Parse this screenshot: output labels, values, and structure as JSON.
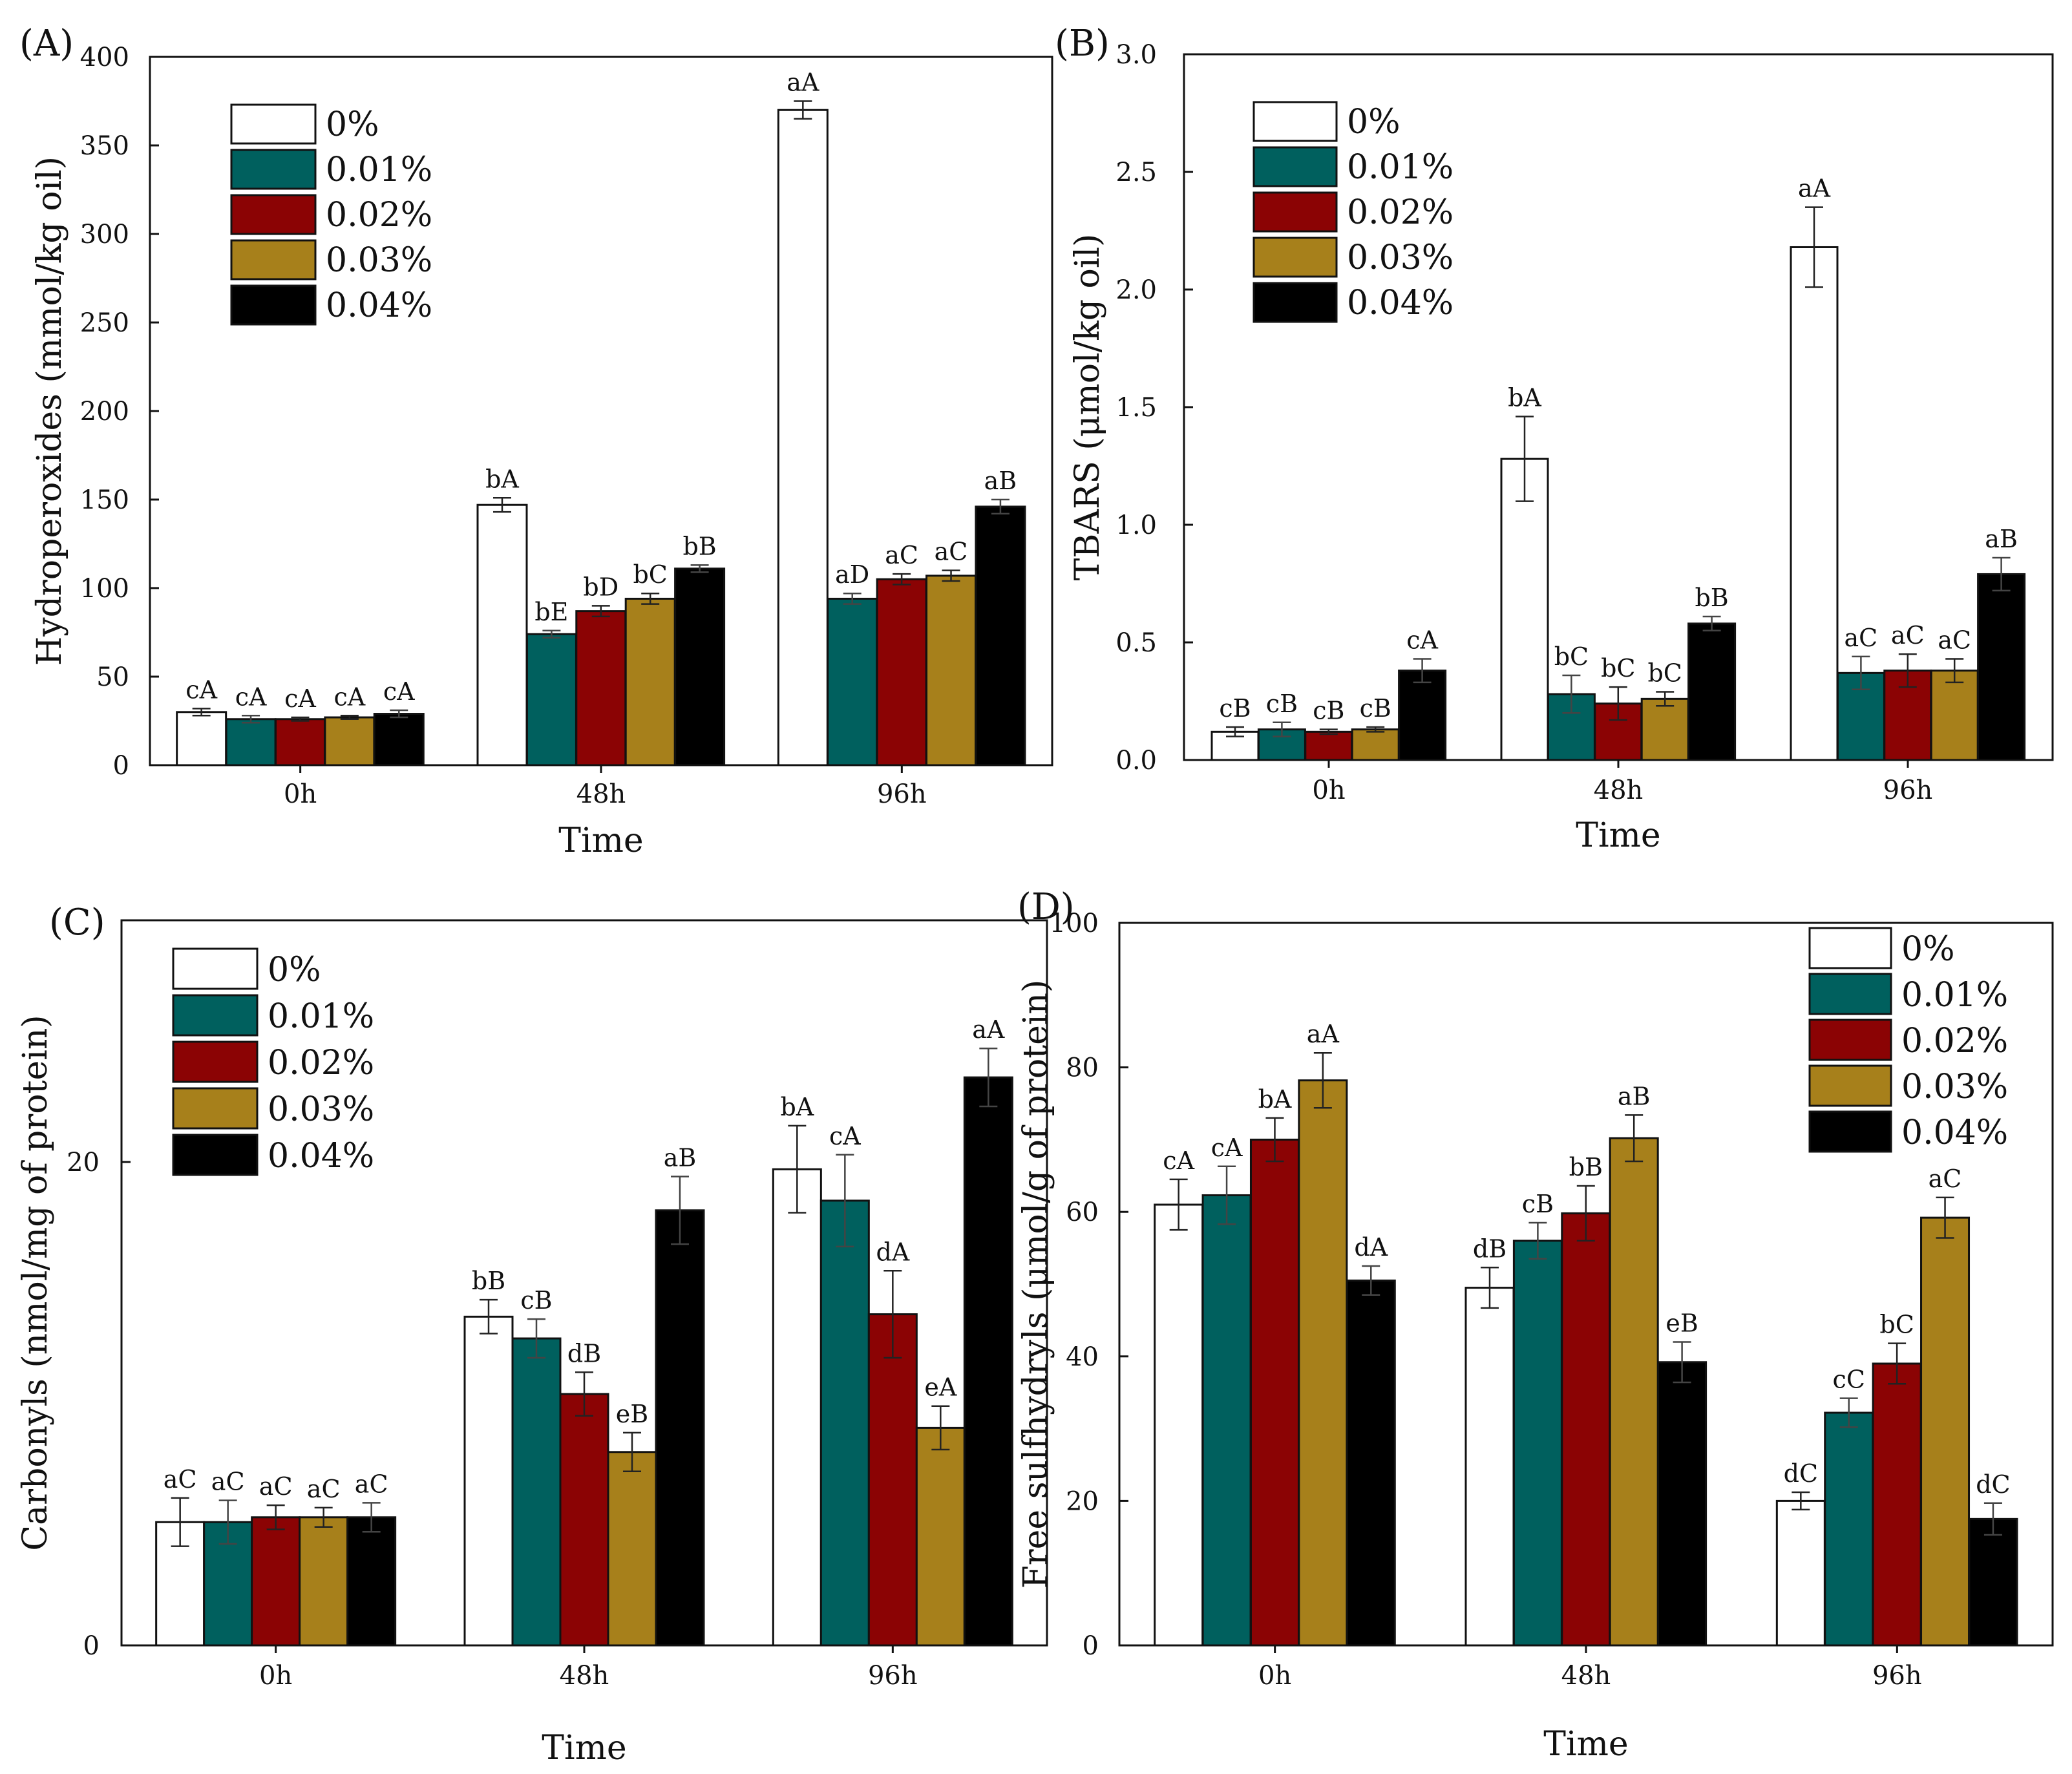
{
  "colors": {
    "0%": "#ffffff",
    "0.01%": "#00605e",
    "0.02%": "#8b0304",
    "0.03%": "#a7801b",
    "0.04%": "#000000"
  },
  "chart_data": [
    {
      "type": "bar",
      "panel": "(A)",
      "categories": [
        "0h",
        "48h",
        "96h"
      ],
      "xlabel": "Time",
      "ylabel": "Hydroperoxides (mmol/kg oil)",
      "ylim": [
        0,
        400
      ],
      "yticks": [
        0,
        50,
        100,
        150,
        200,
        250,
        300,
        350,
        400
      ],
      "legend_position": "top-left",
      "series": [
        {
          "name": "0%",
          "values": [
            30,
            147,
            370
          ],
          "errors": [
            2,
            4,
            5
          ],
          "labels": [
            "cA",
            "bA",
            "aA"
          ]
        },
        {
          "name": "0.01%",
          "values": [
            26,
            74,
            94
          ],
          "errors": [
            2,
            2,
            3
          ],
          "labels": [
            "cA",
            "bE",
            "aD"
          ]
        },
        {
          "name": "0.02%",
          "values": [
            26,
            87,
            105
          ],
          "errors": [
            1,
            3,
            3
          ],
          "labels": [
            "cA",
            "bD",
            "aC"
          ]
        },
        {
          "name": "0.03%",
          "values": [
            27,
            94,
            107
          ],
          "errors": [
            1,
            3,
            3
          ],
          "labels": [
            "cA",
            "bC",
            "aC"
          ]
        },
        {
          "name": "0.04%",
          "values": [
            29,
            111,
            146
          ],
          "errors": [
            2,
            2,
            4
          ],
          "labels": [
            "cA",
            "bB",
            "aB"
          ]
        }
      ]
    },
    {
      "type": "bar",
      "panel": "(B)",
      "categories": [
        "0h",
        "48h",
        "96h"
      ],
      "xlabel": "Time",
      "ylabel": "TBARS (μmol/kg oil)",
      "ylim": [
        0,
        3.0
      ],
      "yticks": [
        "0.0",
        "0.5",
        "1.0",
        "1.5",
        "2.0",
        "2.5",
        "3.0"
      ],
      "legend_position": "top-left",
      "series": [
        {
          "name": "0%",
          "values": [
            0.12,
            1.28,
            2.18
          ],
          "errors": [
            0.02,
            0.18,
            0.17
          ],
          "labels": [
            "cB",
            "bA",
            "aA"
          ]
        },
        {
          "name": "0.01%",
          "values": [
            0.13,
            0.28,
            0.37
          ],
          "errors": [
            0.03,
            0.08,
            0.07
          ],
          "labels": [
            "cB",
            "bC",
            "aC"
          ]
        },
        {
          "name": "0.02%",
          "values": [
            0.12,
            0.24,
            0.38
          ],
          "errors": [
            0.01,
            0.07,
            0.07
          ],
          "labels": [
            "cB",
            "bC",
            "aC"
          ]
        },
        {
          "name": "0.03%",
          "values": [
            0.13,
            0.26,
            0.38
          ],
          "errors": [
            0.01,
            0.03,
            0.05
          ],
          "labels": [
            "cB",
            "bC",
            "aC"
          ]
        },
        {
          "name": "0.04%",
          "values": [
            0.38,
            0.58,
            0.79
          ],
          "errors": [
            0.05,
            0.03,
            0.07
          ],
          "labels": [
            "cA",
            "bB",
            "aB"
          ]
        }
      ]
    },
    {
      "type": "bar",
      "panel": "(C)",
      "categories": [
        "0h",
        "48h",
        "96h"
      ],
      "xlabel": "Time",
      "ylabel": "Carbonyls (nmol/mg of protein)",
      "ylim": [
        0,
        30
      ],
      "yticks": [
        0,
        20
      ],
      "legend_position": "top-left",
      "series": [
        {
          "name": "0%",
          "values": [
            5.1,
            13.6,
            19.7
          ],
          "errors": [
            1.0,
            0.7,
            1.8
          ],
          "labels": [
            "aC",
            "bB",
            "bA"
          ]
        },
        {
          "name": "0.01%",
          "values": [
            5.1,
            12.7,
            18.4
          ],
          "errors": [
            0.9,
            0.8,
            1.9
          ],
          "labels": [
            "aC",
            "cB",
            "cA"
          ]
        },
        {
          "name": "0.02%",
          "values": [
            5.3,
            10.4,
            13.7
          ],
          "errors": [
            0.5,
            0.9,
            1.8
          ],
          "labels": [
            "aC",
            "dB",
            "dA"
          ]
        },
        {
          "name": "0.03%",
          "values": [
            5.3,
            8.0,
            9.0
          ],
          "errors": [
            0.4,
            0.8,
            0.9
          ],
          "labels": [
            "aC",
            "eB",
            "eA"
          ]
        },
        {
          "name": "0.04%",
          "values": [
            5.3,
            18.0,
            23.5
          ],
          "errors": [
            0.6,
            1.4,
            1.2
          ],
          "labels": [
            "aC",
            "aB",
            "aA"
          ]
        }
      ]
    },
    {
      "type": "bar",
      "panel": "(D)",
      "categories": [
        "0h",
        "48h",
        "96h"
      ],
      "xlabel": "Time",
      "ylabel": "Free sulfhydryls (μmol/g of protein)",
      "ylim": [
        0,
        100
      ],
      "yticks": [
        0,
        20,
        40,
        60,
        80,
        100
      ],
      "legend_position": "top-right",
      "series": [
        {
          "name": "0%",
          "values": [
            61,
            49.5,
            20
          ],
          "errors": [
            3.5,
            2.8,
            1.2
          ],
          "labels": [
            "cA",
            "dB",
            "dC"
          ]
        },
        {
          "name": "0.01%",
          "values": [
            62.3,
            56,
            32.2
          ],
          "errors": [
            4,
            2.5,
            2
          ],
          "labels": [
            "cA",
            "cB",
            "cC"
          ]
        },
        {
          "name": "0.02%",
          "values": [
            70,
            59.8,
            39
          ],
          "errors": [
            3,
            3.8,
            2.8
          ],
          "labels": [
            "bA",
            "bB",
            "bC"
          ]
        },
        {
          "name": "0.03%",
          "values": [
            78.2,
            70.2,
            59.2
          ],
          "errors": [
            3.8,
            3.2,
            2.8
          ],
          "labels": [
            "aA",
            "aB",
            "aC"
          ]
        },
        {
          "name": "0.04%",
          "values": [
            50.5,
            39.2,
            17.5
          ],
          "errors": [
            2,
            2.8,
            2.2
          ],
          "labels": [
            "dA",
            "eB",
            "dC"
          ]
        }
      ]
    }
  ]
}
